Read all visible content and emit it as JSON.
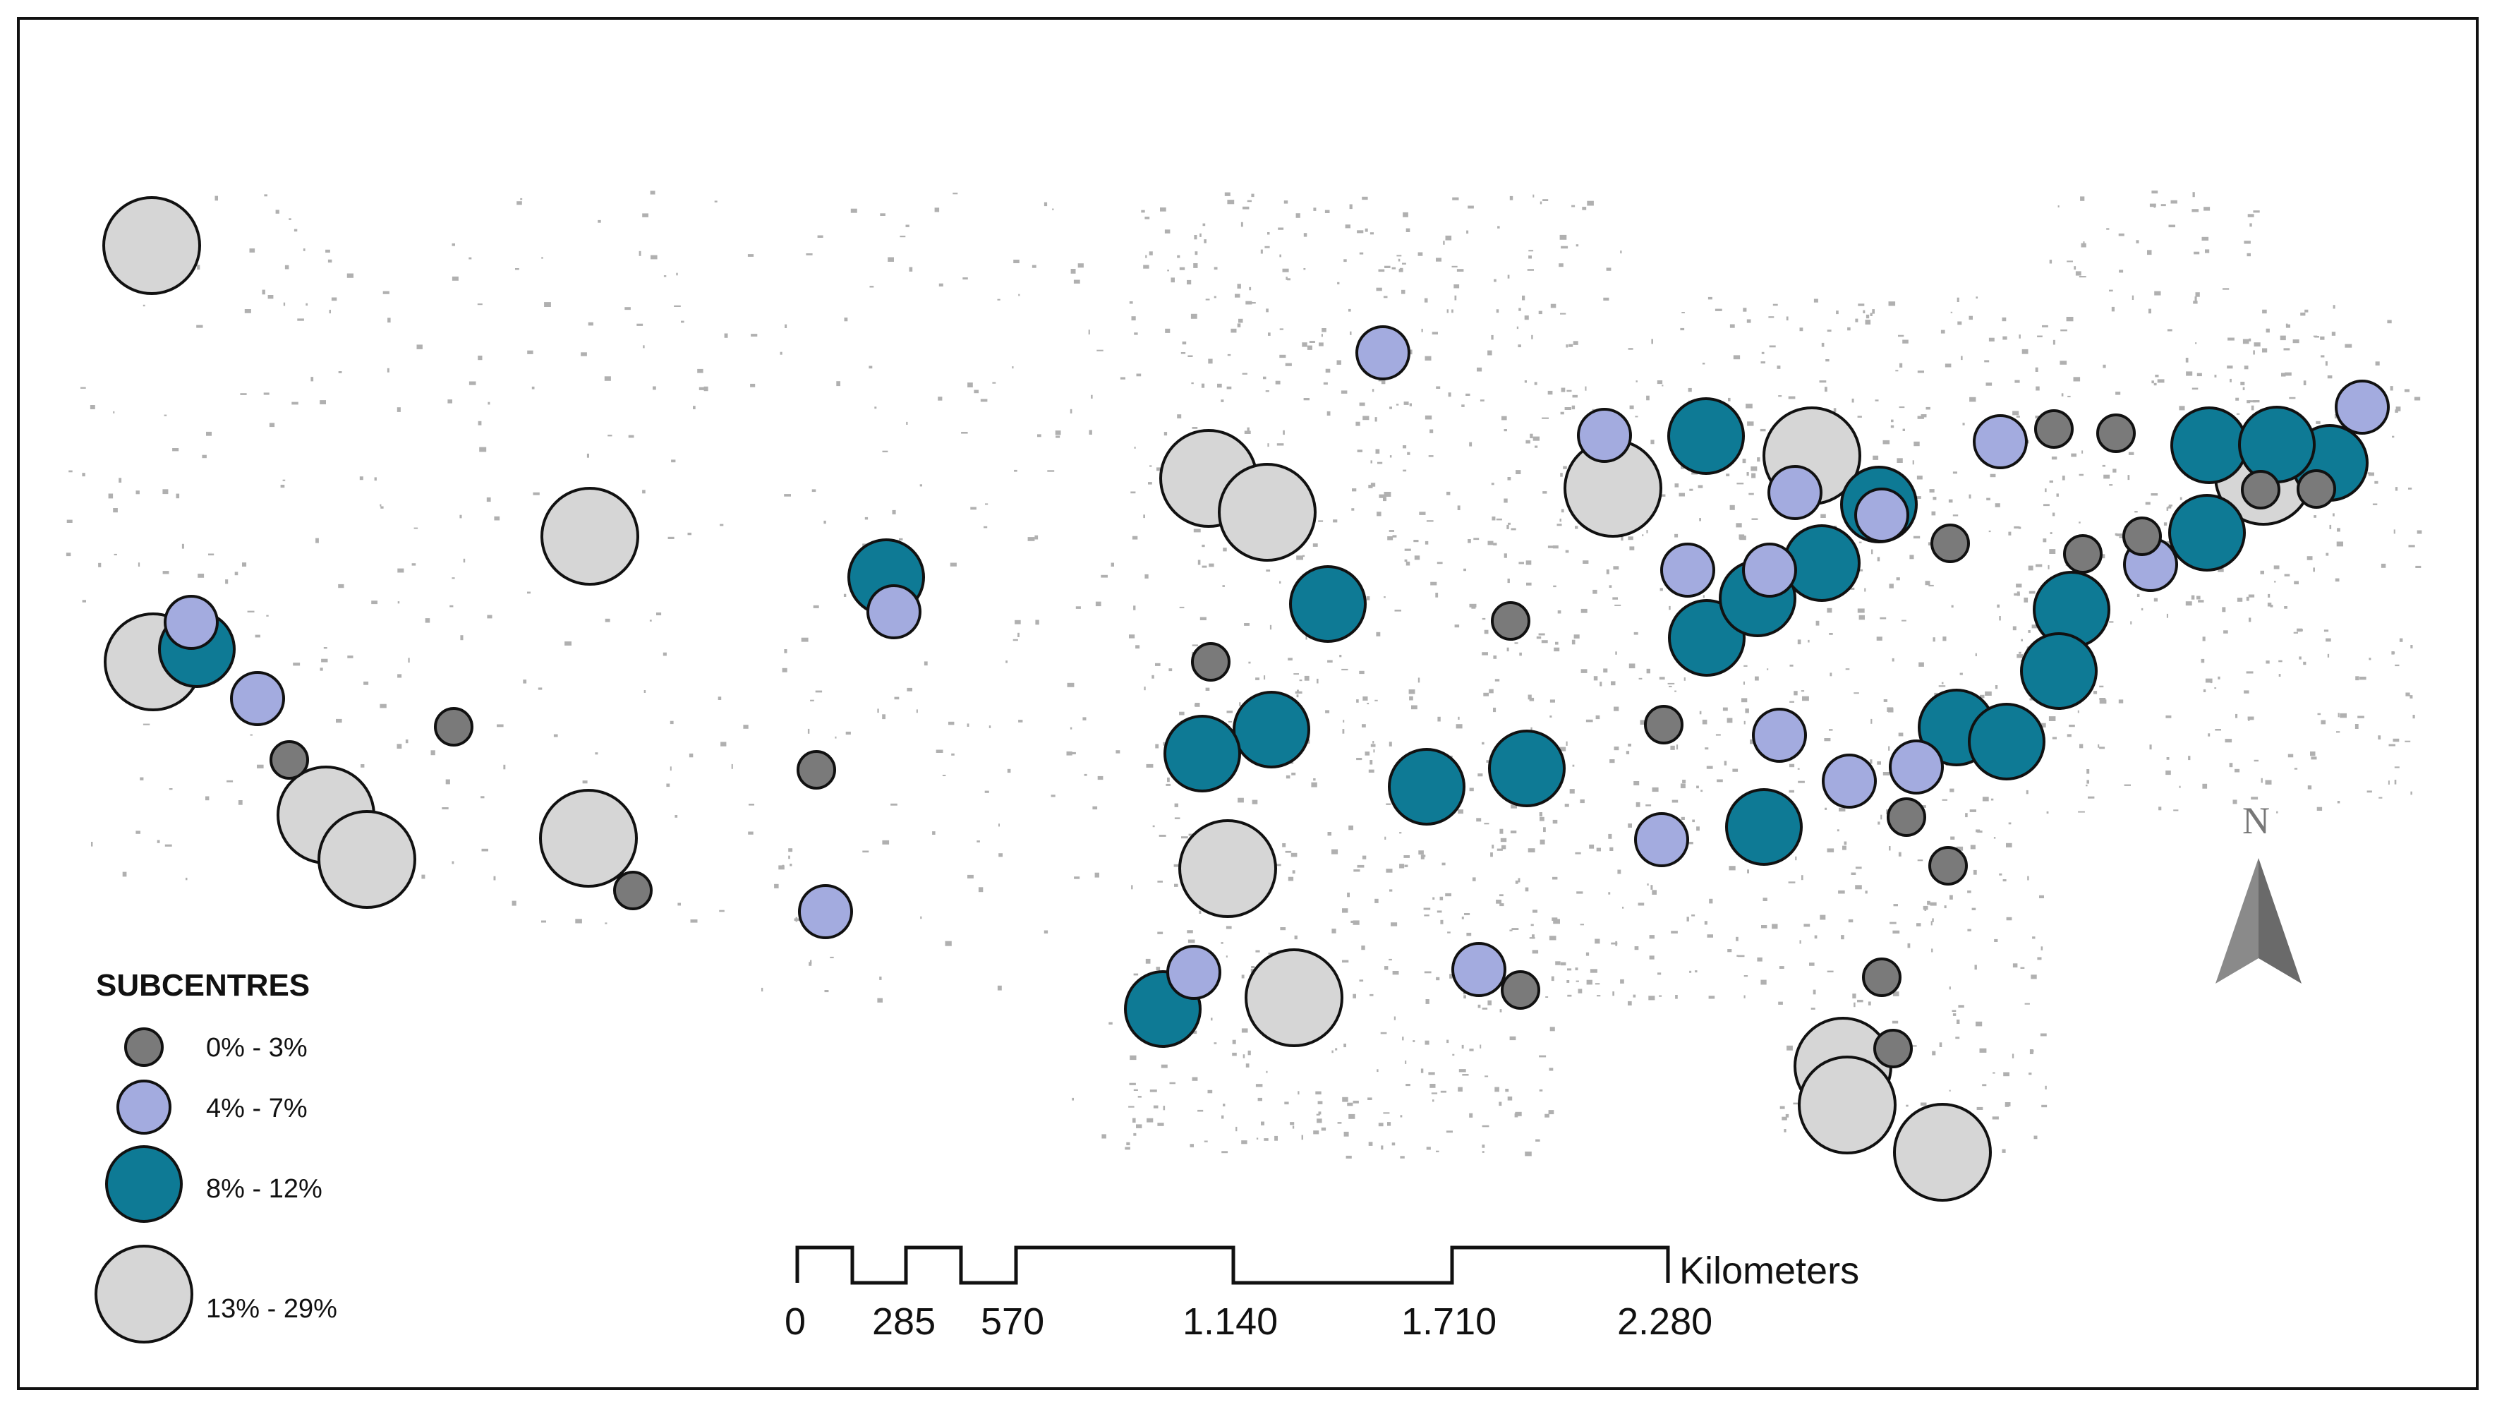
{
  "title": "",
  "legend": {
    "title": "SUBCENTRES",
    "classes": [
      {
        "key": "c1",
        "label": "0% - 3%",
        "color": "#7a7a7a"
      },
      {
        "key": "c2",
        "label": "4% - 7%",
        "color": "#a3abdf"
      },
      {
        "key": "c3",
        "label": "8% - 12%",
        "color": "#0e7a95"
      },
      {
        "key": "c4",
        "label": "13% - 29%",
        "color": "#d6d6d6"
      }
    ]
  },
  "scale_bar": {
    "ticks": [
      "0",
      "285",
      "570",
      "1.140",
      "1.710",
      "2.280"
    ],
    "unit": "Kilometers"
  },
  "north_arrow": {
    "label": "N"
  },
  "subcentres": [
    {
      "id": "s1",
      "class": "c4"
    },
    {
      "id": "s2",
      "class": "c4"
    },
    {
      "id": "s3",
      "class": "c2"
    },
    {
      "id": "s4",
      "class": "c3"
    },
    {
      "id": "s5",
      "class": "c2"
    },
    {
      "id": "s6",
      "class": "c1"
    },
    {
      "id": "s7",
      "class": "c4"
    },
    {
      "id": "s8",
      "class": "c4"
    },
    {
      "id": "s9",
      "class": "c1"
    },
    {
      "id": "s10",
      "class": "c4"
    },
    {
      "id": "s11",
      "class": "c4"
    },
    {
      "id": "s12",
      "class": "c1"
    },
    {
      "id": "s13",
      "class": "c3"
    },
    {
      "id": "s14",
      "class": "c2"
    },
    {
      "id": "s15",
      "class": "c1"
    },
    {
      "id": "s16",
      "class": "c2"
    },
    {
      "id": "s17",
      "class": "c2"
    },
    {
      "id": "s18",
      "class": "c4"
    },
    {
      "id": "s19",
      "class": "c4"
    },
    {
      "id": "s20",
      "class": "c3"
    },
    {
      "id": "s21",
      "class": "c1"
    },
    {
      "id": "s22",
      "class": "c3"
    },
    {
      "id": "s23",
      "class": "c3"
    },
    {
      "id": "s24",
      "class": "c3"
    },
    {
      "id": "s25",
      "class": "c3"
    },
    {
      "id": "s26",
      "class": "c4"
    },
    {
      "id": "s27",
      "class": "c2"
    },
    {
      "id": "s28",
      "class": "c3"
    },
    {
      "id": "s29",
      "class": "c4"
    },
    {
      "id": "s30",
      "class": "c2"
    },
    {
      "id": "s31",
      "class": "c1"
    },
    {
      "id": "s32",
      "class": "c1"
    },
    {
      "id": "s33",
      "class": "c2"
    },
    {
      "id": "s34",
      "class": "c4"
    },
    {
      "id": "s35",
      "class": "c3"
    },
    {
      "id": "s36",
      "class": "c4"
    },
    {
      "id": "s37",
      "class": "c2"
    },
    {
      "id": "s38",
      "class": "c2"
    },
    {
      "id": "s39",
      "class": "c3"
    },
    {
      "id": "s40",
      "class": "c3"
    },
    {
      "id": "s41",
      "class": "c3"
    },
    {
      "id": "s42",
      "class": "c2"
    },
    {
      "id": "s43",
      "class": "c1"
    },
    {
      "id": "s44",
      "class": "c3"
    },
    {
      "id": "s45",
      "class": "c2"
    },
    {
      "id": "s46",
      "class": "c3"
    },
    {
      "id": "s47",
      "class": "c2"
    },
    {
      "id": "s48",
      "class": "c2"
    },
    {
      "id": "s49",
      "class": "c3"
    },
    {
      "id": "s50",
      "class": "c3"
    },
    {
      "id": "s51",
      "class": "c2"
    },
    {
      "id": "s52",
      "class": "c1"
    },
    {
      "id": "s53",
      "class": "c1"
    },
    {
      "id": "s54",
      "class": "c2"
    },
    {
      "id": "s55",
      "class": "c3"
    },
    {
      "id": "s56",
      "class": "c3"
    },
    {
      "id": "s57",
      "class": "c3"
    },
    {
      "id": "s58",
      "class": "c3"
    },
    {
      "id": "s59",
      "class": "c2"
    },
    {
      "id": "s60",
      "class": "c1"
    },
    {
      "id": "s61",
      "class": "c1"
    },
    {
      "id": "s62",
      "class": "c2"
    },
    {
      "id": "s63",
      "class": "c1"
    },
    {
      "id": "s64",
      "class": "c1"
    },
    {
      "id": "s65",
      "class": "c1"
    },
    {
      "id": "s66",
      "class": "c3"
    },
    {
      "id": "s67",
      "class": "c3"
    },
    {
      "id": "s68",
      "class": "c4"
    },
    {
      "id": "s69",
      "class": "c1"
    },
    {
      "id": "s70",
      "class": "c1"
    },
    {
      "id": "s71",
      "class": "c2"
    },
    {
      "id": "s72",
      "class": "c1"
    },
    {
      "id": "s73",
      "class": "c1"
    },
    {
      "id": "s74",
      "class": "c4"
    },
    {
      "id": "s75",
      "class": "c4"
    },
    {
      "id": "s76",
      "class": "c4"
    }
  ]
}
